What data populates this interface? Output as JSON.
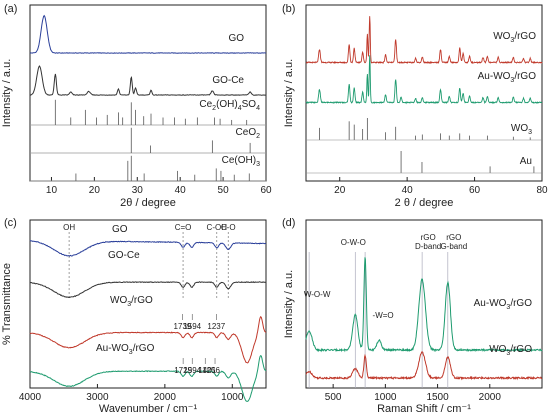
{
  "chart_data": [
    {
      "panel": "(a)",
      "type": "line",
      "title": "",
      "xlabel": "2θ / degree",
      "ylabel": "Intensity / a.u.",
      "xlim": [
        5,
        60
      ],
      "x_ticks": [
        10,
        20,
        30,
        40,
        50,
        60
      ],
      "grid": false,
      "series": [
        {
          "name": "GO",
          "color": "#2a3f9a",
          "baseline": 0.18,
          "peaks": [
            [
              8.3,
              0.62,
              1.0
            ]
          ]
        },
        {
          "name": "GO-Ce",
          "color": "#333333",
          "baseline": 0.4,
          "peaks": [
            [
              7.2,
              0.48,
              0.9
            ],
            [
              10.9,
              0.35,
              0.35
            ],
            [
              14.5,
              0.05,
              0.4
            ],
            [
              18.7,
              0.06,
              0.5
            ],
            [
              25.6,
              0.1,
              0.3
            ],
            [
              28.6,
              0.3,
              0.3
            ],
            [
              29.6,
              0.12,
              0.3
            ],
            [
              33.2,
              0.08,
              0.3
            ],
            [
              47.5,
              0.07,
              0.4
            ],
            [
              56.3,
              0.05,
              0.4
            ]
          ]
        }
      ],
      "references": [
        {
          "name": "Ce(OH)4SO4",
          "label_main": "Ce",
          "label_sub1": "2",
          "label_mid": "(OH)",
          "label_sub2": "4",
          "label_tail": "SO",
          "label_sub3": "4",
          "sticks": [
            [
              10.9,
              1.0
            ],
            [
              14.5,
              0.3
            ],
            [
              17.9,
              0.6
            ],
            [
              20.5,
              0.3
            ],
            [
              23.0,
              0.4
            ],
            [
              25.6,
              0.5
            ],
            [
              26.6,
              0.3
            ],
            [
              28.6,
              0.9
            ],
            [
              29.6,
              0.6
            ],
            [
              31.5,
              0.35
            ],
            [
              33.2,
              0.45
            ],
            [
              36.0,
              0.3
            ],
            [
              38.7,
              0.3
            ],
            [
              41.2,
              0.25
            ],
            [
              44.0,
              0.3
            ],
            [
              48.0,
              0.3
            ],
            [
              49.3,
              0.25
            ],
            [
              52.0,
              0.2
            ],
            [
              55.5,
              0.2
            ]
          ]
        },
        {
          "name": "CeO2",
          "label_main": "CeO",
          "label_sub1": "2",
          "sticks": [
            [
              28.6,
              1.0
            ],
            [
              33.1,
              0.3
            ],
            [
              47.5,
              0.5
            ],
            [
              56.3,
              0.4
            ]
          ]
        },
        {
          "name": "Ce(OH)3",
          "label_main": "Ce(OH)",
          "label_sub1": "3",
          "sticks": [
            [
              15.7,
              0.3
            ],
            [
              27.8,
              0.8
            ],
            [
              28.6,
              1.0
            ],
            [
              31.6,
              0.3
            ],
            [
              39.4,
              0.4
            ],
            [
              43.4,
              0.25
            ],
            [
              48.4,
              0.5
            ],
            [
              49.5,
              0.4
            ],
            [
              52.6,
              0.25
            ],
            [
              56.1,
              0.3
            ]
          ]
        }
      ]
    },
    {
      "panel": "(b)",
      "type": "line",
      "title": "",
      "xlabel": "2 θ / degree",
      "ylabel": "Intensity / a.u.",
      "xlim": [
        10,
        80
      ],
      "x_ticks": [
        20,
        40,
        60,
        80
      ],
      "grid": false,
      "series": [
        {
          "name": "WO3/rGO",
          "label_main": "WO",
          "label_sub": "3",
          "label_tail": "/rGO",
          "color": "#c0392b",
          "baseline": 0.06,
          "peaks": [
            [
              14.0,
              0.25,
              0.35
            ],
            [
              22.8,
              0.35,
              0.3
            ],
            [
              24.3,
              0.28,
              0.3
            ],
            [
              26.8,
              0.2,
              0.3
            ],
            [
              28.2,
              0.55,
              0.22
            ],
            [
              28.9,
              0.9,
              0.22
            ],
            [
              33.6,
              0.15,
              0.3
            ],
            [
              36.6,
              0.45,
              0.3
            ],
            [
              42.5,
              0.08,
              0.3
            ],
            [
              44.5,
              0.1,
              0.3
            ],
            [
              49.9,
              0.25,
              0.3
            ],
            [
              52.5,
              0.12,
              0.3
            ],
            [
              55.6,
              0.28,
              0.3
            ],
            [
              56.6,
              0.18,
              0.3
            ],
            [
              58.5,
              0.12,
              0.3
            ],
            [
              62.5,
              0.1,
              0.3
            ],
            [
              63.8,
              0.12,
              0.3
            ],
            [
              67.0,
              0.1,
              0.3
            ],
            [
              71.5,
              0.1,
              0.3
            ],
            [
              74.5,
              0.08,
              0.3
            ],
            [
              76.5,
              0.08,
              0.3
            ]
          ]
        },
        {
          "name": "Au-WO3/rGO",
          "label_main": "Au-WO",
          "label_sub": "3",
          "label_tail": "/rGO",
          "color": "#1e9b6f",
          "baseline": 0.06,
          "peaks": [
            [
              14.0,
              0.25,
              0.35
            ],
            [
              22.8,
              0.35,
              0.3
            ],
            [
              24.3,
              0.28,
              0.3
            ],
            [
              26.8,
              0.2,
              0.3
            ],
            [
              28.2,
              0.55,
              0.22
            ],
            [
              28.9,
              0.9,
              0.22
            ],
            [
              33.6,
              0.15,
              0.3
            ],
            [
              36.6,
              0.45,
              0.3
            ],
            [
              38.2,
              0.1,
              0.3
            ],
            [
              42.5,
              0.08,
              0.3
            ],
            [
              44.5,
              0.1,
              0.3
            ],
            [
              49.9,
              0.25,
              0.3
            ],
            [
              52.5,
              0.12,
              0.3
            ],
            [
              55.6,
              0.28,
              0.3
            ],
            [
              56.6,
              0.18,
              0.3
            ],
            [
              58.5,
              0.12,
              0.3
            ],
            [
              62.5,
              0.1,
              0.3
            ],
            [
              63.8,
              0.12,
              0.3
            ],
            [
              67.0,
              0.1,
              0.3
            ],
            [
              71.5,
              0.1,
              0.3
            ],
            [
              74.5,
              0.08,
              0.3
            ],
            [
              76.5,
              0.08,
              0.3
            ]
          ]
        }
      ],
      "references": [
        {
          "name": "WO3",
          "label_main": "WO",
          "label_sub1": "3",
          "sticks": [
            [
              14.0,
              0.55
            ],
            [
              22.8,
              0.85
            ],
            [
              24.3,
              0.7
            ],
            [
              26.8,
              0.5
            ],
            [
              28.2,
              1.0
            ],
            [
              33.6,
              0.35
            ],
            [
              36.6,
              0.6
            ],
            [
              42.5,
              0.2
            ],
            [
              44.5,
              0.25
            ],
            [
              49.9,
              0.3
            ],
            [
              52.5,
              0.2
            ],
            [
              55.6,
              0.3
            ],
            [
              58.5,
              0.2
            ],
            [
              63.8,
              0.2
            ],
            [
              71.5,
              0.15
            ],
            [
              76.5,
              0.12
            ]
          ]
        },
        {
          "name": "Au",
          "label_main": "Au",
          "sticks": [
            [
              38.2,
              1.0
            ],
            [
              44.4,
              0.5
            ],
            [
              64.6,
              0.3
            ],
            [
              77.6,
              0.3
            ]
          ]
        }
      ]
    },
    {
      "panel": "(c)",
      "type": "line",
      "title": "",
      "xlabel": "Wavenumber / cm⁻¹",
      "ylabel": "% Transmittance",
      "xlim": [
        4000,
        500
      ],
      "x_ticks": [
        4000,
        3000,
        2000,
        1000
      ],
      "grid": false,
      "series": [
        {
          "name": "GO",
          "color": "#2a3f9a",
          "offset": 0.86
        },
        {
          "name": "GO-Ce",
          "color": "#333333",
          "offset": 0.63
        },
        {
          "name": "WO3/rGO",
          "label_main": "WO",
          "label_sub": "3",
          "label_tail": "/rGO",
          "color": "#c0392b",
          "offset": 0.33
        },
        {
          "name": "Au-WO3/rGO",
          "label_main": "Au-WO",
          "label_sub": "3",
          "label_tail": "/rGO",
          "color": "#1e9b6f",
          "offset": 0.1
        }
      ],
      "band_lines": [
        {
          "label": "OH",
          "x": 3420
        },
        {
          "label": "C=O",
          "x": 1730
        },
        {
          "label": "C-OH",
          "x": 1230
        },
        {
          "label": "C-O",
          "x": 1060
        }
      ],
      "annotations": [
        {
          "text": "1739",
          "series": "WO3/rGO",
          "x": 1739
        },
        {
          "text": "1594",
          "series": "WO3/rGO",
          "x": 1594
        },
        {
          "text": "1237",
          "series": "WO3/rGO",
          "x": 1237
        },
        {
          "text": "1729",
          "series": "Au-WO3/rGO",
          "x": 1729
        },
        {
          "text": "1594",
          "series": "Au-WO3/rGO",
          "x": 1594
        },
        {
          "text": "1401",
          "series": "Au-WO3/rGO",
          "x": 1401
        },
        {
          "text": "1256",
          "series": "Au-WO3/rGO",
          "x": 1256
        }
      ]
    },
    {
      "panel": "(d)",
      "type": "line",
      "title": "",
      "xlabel": "Raman Shift / cm⁻¹",
      "ylabel": "Intensity / a.u.",
      "xlim": [
        240,
        2500
      ],
      "x_ticks": [
        500,
        1000,
        1500,
        2000
      ],
      "grid": false,
      "series": [
        {
          "name": "Au-WO3/rGO",
          "label_main": "Au-WO",
          "label_sub": "3",
          "label_tail": "/rGO",
          "color": "#1e9b6f",
          "baseline": 0.5,
          "peaks": [
            [
              270,
              0.12,
              40
            ],
            [
              712,
              0.22,
              35
            ],
            [
              806,
              0.58,
              16
            ],
            [
              940,
              0.06,
              30
            ],
            [
              1352,
              0.44,
              45
            ],
            [
              1598,
              0.42,
              35
            ]
          ]
        },
        {
          "name": "WO3/rGO",
          "label_main": "WO",
          "label_sub": "3",
          "label_tail": "/rGO",
          "color": "#c0392b",
          "baseline": 0.05,
          "peaks": [
            [
              270,
              0.04,
              40
            ],
            [
              712,
              0.06,
              35
            ],
            [
              806,
              0.14,
              16
            ],
            [
              1352,
              0.16,
              45
            ],
            [
              1598,
              0.13,
              35
            ]
          ]
        }
      ],
      "band_lines": [
        {
          "label": "W-O-W",
          "x": 270
        },
        {
          "label": "O-W-O",
          "x": 712
        },
        {
          "label": "-W=O",
          "x": 806
        },
        {
          "label": "rGO D-band",
          "label_line1": "rGO",
          "label_line2": "D-band",
          "x": 1352
        },
        {
          "label": "rGO G-band",
          "label_line1": "rGO",
          "label_line2": "G-band",
          "x": 1598
        }
      ]
    }
  ]
}
